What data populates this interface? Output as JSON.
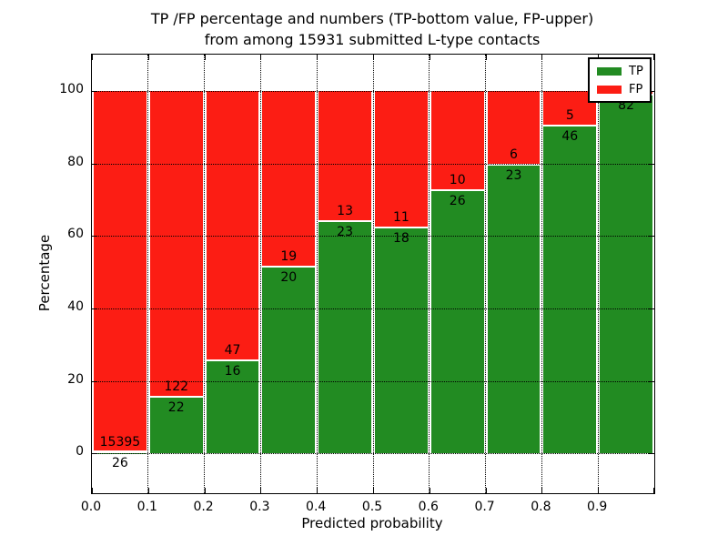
{
  "chart_data": {
    "type": "bar",
    "subtype": "stacked_percent_histogram",
    "title_line1": "TP /FP percentage and numbers (TP-bottom value, FP-upper)",
    "title_line2": "from among 15931 submitted L-type contacts",
    "xlabel": "Predicted probability",
    "ylabel": "Percentage",
    "xlim": [
      0.0,
      1.0
    ],
    "ylim": [
      -11,
      110
    ],
    "x_tick_labels": [
      "0.0",
      "0.1",
      "0.2",
      "0.3",
      "0.4",
      "0.5",
      "0.6",
      "0.7",
      "0.8",
      "0.9"
    ],
    "y_ticks": [
      {
        "value": 0,
        "label": "0"
      },
      {
        "value": 20,
        "label": "20"
      },
      {
        "value": 40,
        "label": "40"
      },
      {
        "value": 60,
        "label": "60"
      },
      {
        "value": 80,
        "label": "80"
      },
      {
        "value": 100,
        "label": "100"
      }
    ],
    "grid": {
      "visible": true,
      "linestyle": "dotted",
      "color": "#000000",
      "drawn_over_bars": true
    },
    "colors": {
      "tp": "#228b22",
      "fp": "#fc1d14",
      "annotation": "#000000",
      "background": "#ffffff",
      "frame": "#000000"
    },
    "legend": {
      "position": "upper-right",
      "entries": [
        {
          "label": "TP",
          "color": "#228b22"
        },
        {
          "label": "FP",
          "color": "#fc1d14"
        }
      ]
    },
    "bins": [
      {
        "range": "0.0-0.1",
        "tp_count_label": "26",
        "fp_count_label": "15395",
        "tp_percent": 0.17
      },
      {
        "range": "0.1-0.2",
        "tp_count_label": "22",
        "fp_count_label": "122",
        "tp_percent": 15.28
      },
      {
        "range": "0.2-0.3",
        "tp_count_label": "16",
        "fp_count_label": "47",
        "tp_percent": 25.4
      },
      {
        "range": "0.3-0.4",
        "tp_count_label": "20",
        "fp_count_label": "19",
        "tp_percent": 51.28
      },
      {
        "range": "0.4-0.5",
        "tp_count_label": "23",
        "fp_count_label": "13",
        "tp_percent": 63.89
      },
      {
        "range": "0.5-0.6",
        "tp_count_label": "18",
        "fp_count_label": "11",
        "tp_percent": 62.07
      },
      {
        "range": "0.6-0.7",
        "tp_count_label": "26",
        "fp_count_label": "10",
        "tp_percent": 72.22
      },
      {
        "range": "0.7-0.8",
        "tp_count_label": "23",
        "fp_count_label": "6",
        "tp_percent": 79.31
      },
      {
        "range": "0.8-0.9",
        "tp_count_label": "46",
        "fp_count_label": "5",
        "tp_percent": 90.2
      },
      {
        "range": "0.9-1.0",
        "tp_count_label": "82",
        "fp_count_label": null,
        "tp_percent": 98.8
      }
    ]
  }
}
